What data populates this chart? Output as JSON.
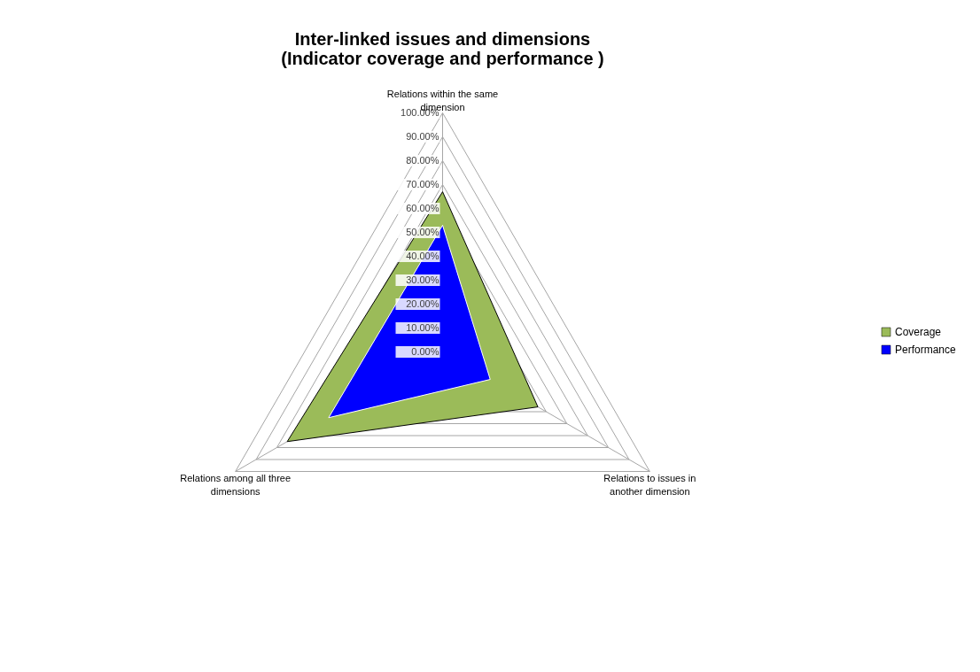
{
  "chart_data": {
    "type": "radar",
    "title": [
      "Inter-linked issues and dimensions",
      "(Indicator coverage and performance )"
    ],
    "categories": [
      "Relations within the same dimension",
      "Relations to issues in another dimension",
      "Relations among all three dimensions"
    ],
    "series": [
      {
        "name": "Coverage",
        "color": "#9bbb59",
        "values": [
          67,
          46,
          75
        ]
      },
      {
        "name": "Performance",
        "color": "#0000ff",
        "values": [
          53,
          23,
          55
        ]
      }
    ],
    "ylim": [
      0,
      100
    ],
    "yticks": [
      {
        "value": 0,
        "label": "0.00%"
      },
      {
        "value": 10,
        "label": "10.00%"
      },
      {
        "value": 20,
        "label": "20.00%"
      },
      {
        "value": 30,
        "label": "30.00%"
      },
      {
        "value": 40,
        "label": "40.00%"
      },
      {
        "value": 50,
        "label": "50.00%"
      },
      {
        "value": 60,
        "label": "60.00%"
      },
      {
        "value": 70,
        "label": "70.00%"
      },
      {
        "value": 80,
        "label": "80.00%"
      },
      {
        "value": 90,
        "label": "90.00%"
      },
      {
        "value": 100,
        "label": "100.00%"
      }
    ],
    "grid": true,
    "legend": "right"
  }
}
